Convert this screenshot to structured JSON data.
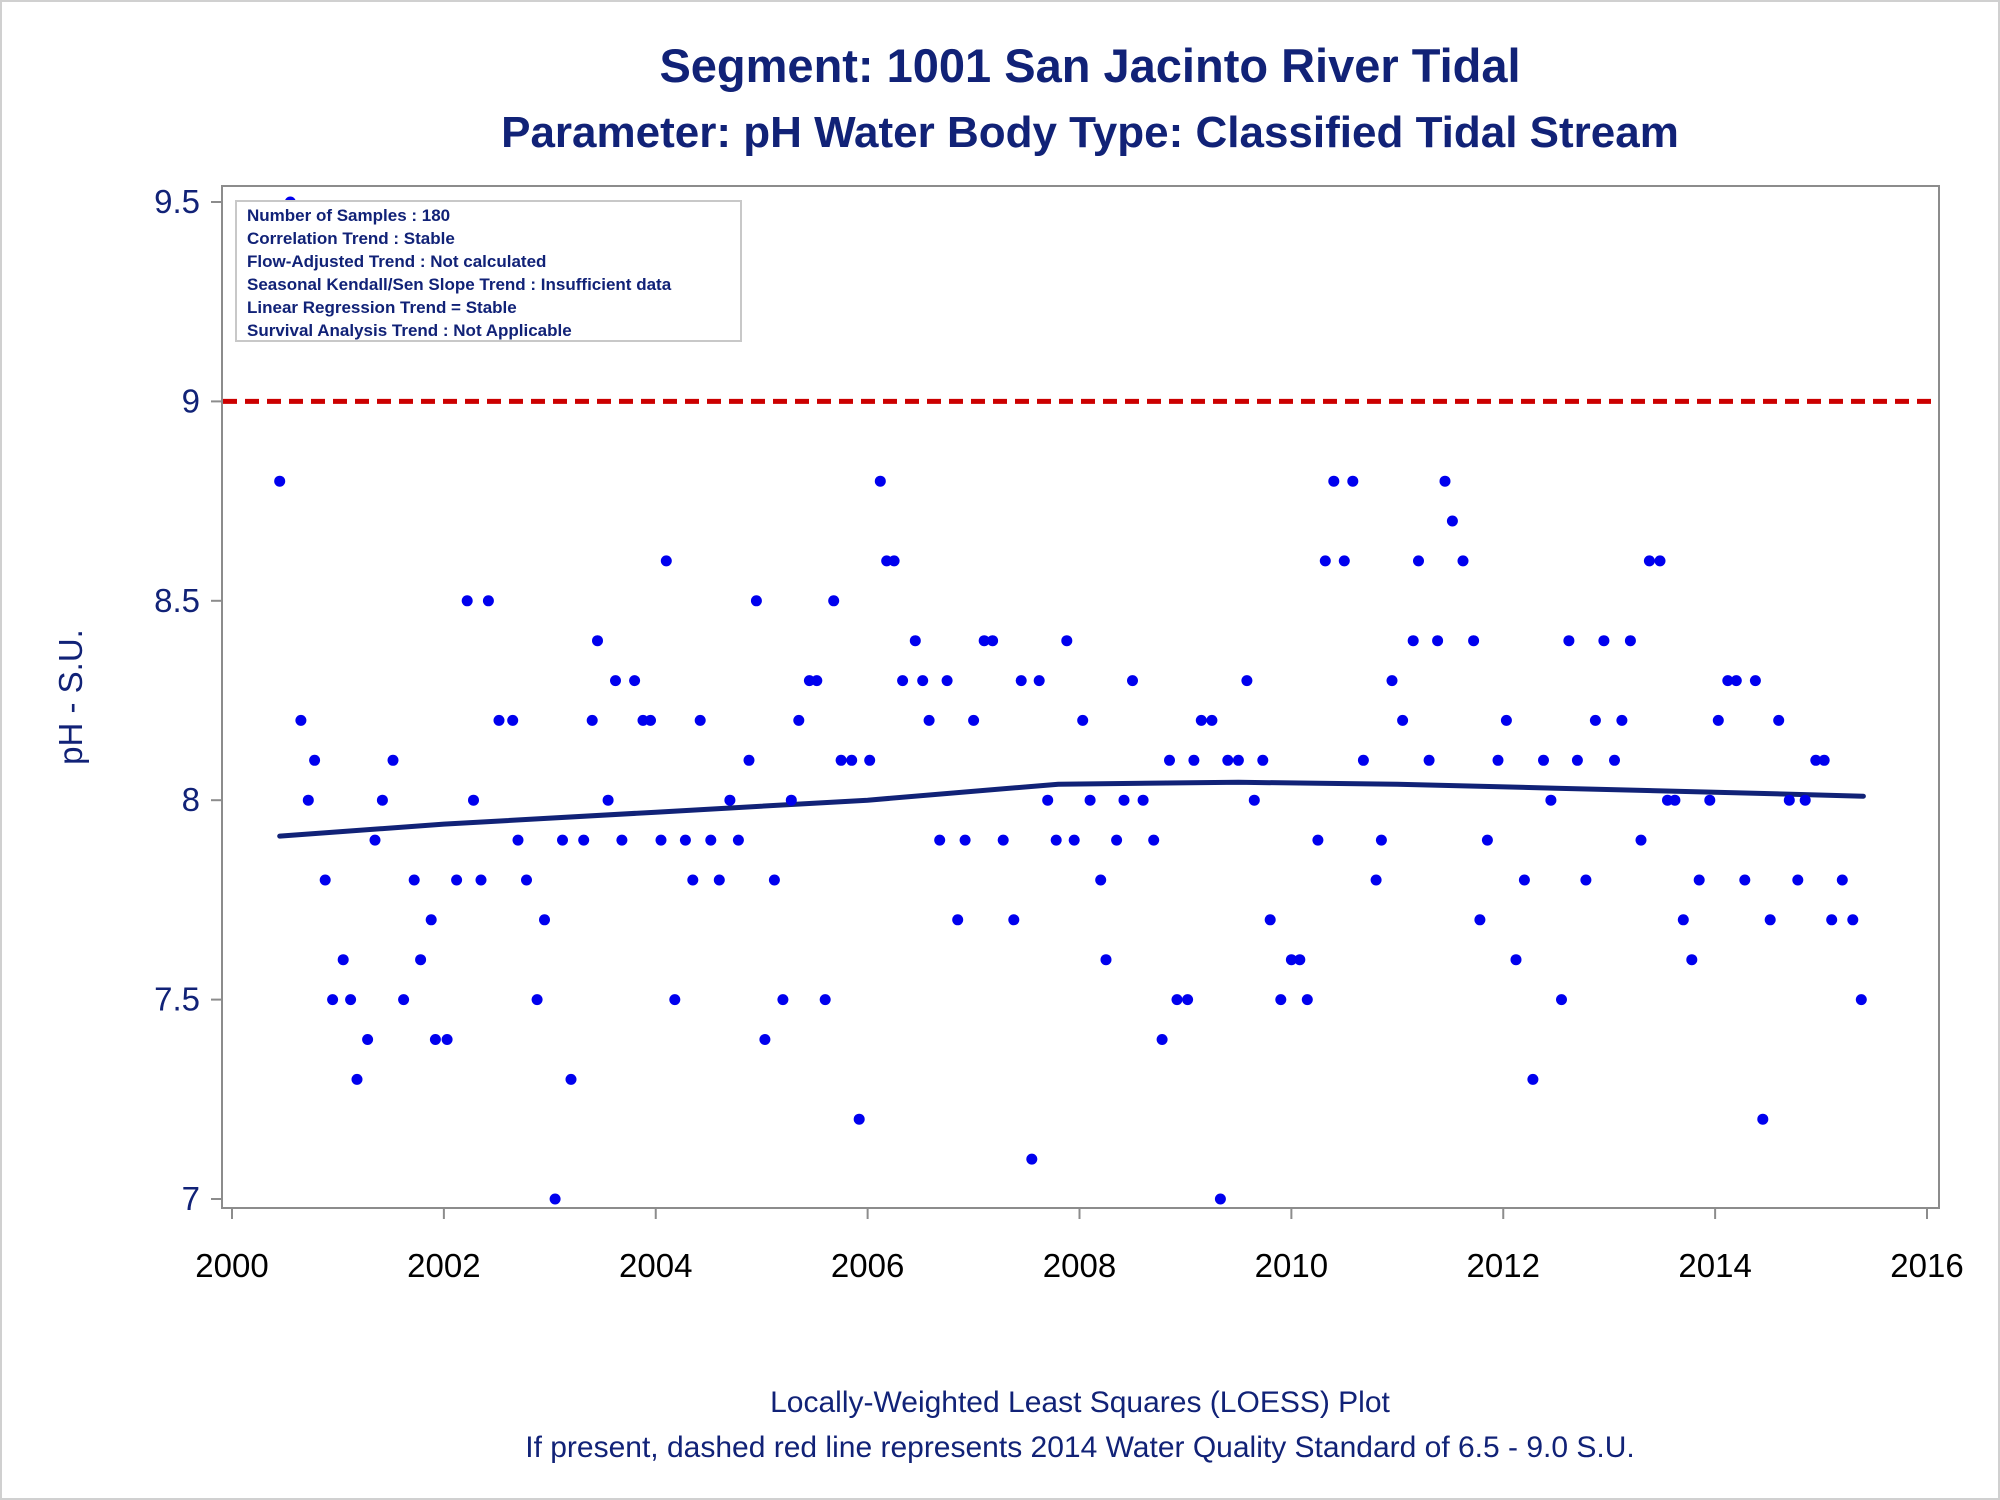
{
  "chart_data": {
    "type": "scatter",
    "title": "Segment: 1001  San Jacinto River Tidal",
    "subtitle": "Parameter: pH   Water Body Type: Classified Tidal Stream",
    "xlabel": "",
    "ylabel": "pH - S.U.",
    "xlim": [
      2000,
      2016
    ],
    "ylim": [
      7,
      9.5
    ],
    "xticks": [
      "2000",
      "2002",
      "2004",
      "2006",
      "2008",
      "2010",
      "2012",
      "2014",
      "2016"
    ],
    "yticks": [
      "7",
      "7.5",
      "8",
      "8.5",
      "9",
      "9.5"
    ],
    "grid": false,
    "legend": {
      "placement": "top-left",
      "lines": [
        "Number of Samples : 180",
        "Correlation Trend : Stable",
        "Flow-Adjusted Trend : Not calculated",
        "Seasonal Kendall/Sen Slope Trend : Insufficient data",
        "Linear Regression Trend = Stable",
        "Survival Analysis Trend : Not Applicable"
      ]
    },
    "reference_line": {
      "y": 9.0,
      "color": "#cc0000",
      "style": "dashed"
    },
    "loess": {
      "color": "#112277",
      "x": [
        2000.45,
        2002.0,
        2004.0,
        2006.0,
        2007.8,
        2009.5,
        2011.0,
        2012.5,
        2014.0,
        2015.4
      ],
      "y": [
        7.91,
        7.94,
        7.97,
        8.0,
        8.04,
        8.045,
        8.04,
        8.03,
        8.02,
        8.01
      ]
    },
    "series": [
      {
        "marker_color": "#0000ee",
        "points": [
          [
            2000.45,
            8.8
          ],
          [
            2000.55,
            9.5
          ],
          [
            2000.65,
            8.2
          ],
          [
            2000.72,
            8.0
          ],
          [
            2000.78,
            8.1
          ],
          [
            2000.88,
            7.8
          ],
          [
            2000.95,
            7.5
          ],
          [
            2001.05,
            7.6
          ],
          [
            2001.12,
            7.5
          ],
          [
            2001.18,
            7.3
          ],
          [
            2001.28,
            7.4
          ],
          [
            2001.35,
            7.9
          ],
          [
            2001.42,
            8.0
          ],
          [
            2001.52,
            8.1
          ],
          [
            2001.62,
            7.5
          ],
          [
            2001.72,
            7.8
          ],
          [
            2001.78,
            7.6
          ],
          [
            2001.88,
            7.7
          ],
          [
            2001.92,
            7.4
          ],
          [
            2002.03,
            7.4
          ],
          [
            2002.12,
            7.8
          ],
          [
            2002.22,
            8.5
          ],
          [
            2002.28,
            8.0
          ],
          [
            2002.35,
            7.8
          ],
          [
            2002.42,
            8.5
          ],
          [
            2002.52,
            8.2
          ],
          [
            2002.65,
            8.2
          ],
          [
            2002.7,
            7.9
          ],
          [
            2002.78,
            7.8
          ],
          [
            2002.88,
            7.5
          ],
          [
            2002.95,
            7.7
          ],
          [
            2003.05,
            7.0
          ],
          [
            2003.12,
            7.9
          ],
          [
            2003.2,
            7.3
          ],
          [
            2003.32,
            7.9
          ],
          [
            2003.4,
            8.2
          ],
          [
            2003.45,
            8.4
          ],
          [
            2003.55,
            8.0
          ],
          [
            2003.62,
            8.3
          ],
          [
            2003.68,
            7.9
          ],
          [
            2003.8,
            8.3
          ],
          [
            2003.88,
            8.2
          ],
          [
            2003.95,
            8.2
          ],
          [
            2004.05,
            7.9
          ],
          [
            2004.1,
            8.6
          ],
          [
            2004.18,
            7.5
          ],
          [
            2004.28,
            7.9
          ],
          [
            2004.35,
            7.8
          ],
          [
            2004.42,
            8.2
          ],
          [
            2004.52,
            7.9
          ],
          [
            2004.6,
            7.8
          ],
          [
            2004.7,
            8.0
          ],
          [
            2004.78,
            7.9
          ],
          [
            2004.88,
            8.1
          ],
          [
            2004.95,
            8.5
          ],
          [
            2005.03,
            7.4
          ],
          [
            2005.12,
            7.8
          ],
          [
            2005.2,
            7.5
          ],
          [
            2005.28,
            8.0
          ],
          [
            2005.35,
            8.2
          ],
          [
            2005.45,
            8.3
          ],
          [
            2005.52,
            8.3
          ],
          [
            2005.6,
            7.5
          ],
          [
            2005.68,
            8.5
          ],
          [
            2005.75,
            8.1
          ],
          [
            2005.85,
            8.1
          ],
          [
            2005.92,
            7.2
          ],
          [
            2006.02,
            8.1
          ],
          [
            2006.12,
            8.8
          ],
          [
            2006.18,
            8.6
          ],
          [
            2006.25,
            8.6
          ],
          [
            2006.33,
            8.3
          ],
          [
            2006.45,
            8.4
          ],
          [
            2006.52,
            8.3
          ],
          [
            2006.58,
            8.2
          ],
          [
            2006.68,
            7.9
          ],
          [
            2006.75,
            8.3
          ],
          [
            2006.85,
            7.7
          ],
          [
            2006.92,
            7.9
          ],
          [
            2007.0,
            8.2
          ],
          [
            2007.1,
            8.4
          ],
          [
            2007.18,
            8.4
          ],
          [
            2007.28,
            7.9
          ],
          [
            2007.38,
            7.7
          ],
          [
            2007.45,
            8.3
          ],
          [
            2007.55,
            7.1
          ],
          [
            2007.62,
            8.3
          ],
          [
            2007.7,
            8.0
          ],
          [
            2007.78,
            7.9
          ],
          [
            2007.88,
            8.4
          ],
          [
            2007.95,
            7.9
          ],
          [
            2008.03,
            8.2
          ],
          [
            2008.1,
            8.0
          ],
          [
            2008.2,
            7.8
          ],
          [
            2008.25,
            7.6
          ],
          [
            2008.35,
            7.9
          ],
          [
            2008.42,
            8.0
          ],
          [
            2008.5,
            8.3
          ],
          [
            2008.6,
            8.0
          ],
          [
            2008.7,
            7.9
          ],
          [
            2008.78,
            7.4
          ],
          [
            2008.85,
            8.1
          ],
          [
            2008.92,
            7.5
          ],
          [
            2009.02,
            7.5
          ],
          [
            2009.08,
            8.1
          ],
          [
            2009.15,
            8.2
          ],
          [
            2009.25,
            8.2
          ],
          [
            2009.33,
            7.0
          ],
          [
            2009.4,
            8.1
          ],
          [
            2009.5,
            8.1
          ],
          [
            2009.58,
            8.3
          ],
          [
            2009.65,
            8.0
          ],
          [
            2009.73,
            8.1
          ],
          [
            2009.8,
            7.7
          ],
          [
            2009.9,
            7.5
          ],
          [
            2010.0,
            7.6
          ],
          [
            2010.08,
            7.6
          ],
          [
            2010.15,
            7.5
          ],
          [
            2010.25,
            7.9
          ],
          [
            2010.32,
            8.6
          ],
          [
            2010.4,
            8.8
          ],
          [
            2010.5,
            8.6
          ],
          [
            2010.58,
            8.8
          ],
          [
            2010.68,
            8.1
          ],
          [
            2010.8,
            7.8
          ],
          [
            2010.85,
            7.9
          ],
          [
            2010.95,
            8.3
          ],
          [
            2011.05,
            8.2
          ],
          [
            2011.15,
            8.4
          ],
          [
            2011.2,
            8.6
          ],
          [
            2011.3,
            8.1
          ],
          [
            2011.38,
            8.4
          ],
          [
            2011.45,
            8.8
          ],
          [
            2011.52,
            8.7
          ],
          [
            2011.62,
            8.6
          ],
          [
            2011.72,
            8.4
          ],
          [
            2011.78,
            7.7
          ],
          [
            2011.85,
            7.9
          ],
          [
            2011.95,
            8.1
          ],
          [
            2012.03,
            8.2
          ],
          [
            2012.12,
            7.6
          ],
          [
            2012.2,
            7.8
          ],
          [
            2012.28,
            7.3
          ],
          [
            2012.38,
            8.1
          ],
          [
            2012.45,
            8.0
          ],
          [
            2012.55,
            7.5
          ],
          [
            2012.62,
            8.4
          ],
          [
            2012.7,
            8.1
          ],
          [
            2012.78,
            7.8
          ],
          [
            2012.87,
            8.2
          ],
          [
            2012.95,
            8.4
          ],
          [
            2013.05,
            8.1
          ],
          [
            2013.12,
            8.2
          ],
          [
            2013.2,
            8.4
          ],
          [
            2013.3,
            7.9
          ],
          [
            2013.38,
            8.6
          ],
          [
            2013.48,
            8.6
          ],
          [
            2013.55,
            8.0
          ],
          [
            2013.62,
            8.0
          ],
          [
            2013.7,
            7.7
          ],
          [
            2013.78,
            7.6
          ],
          [
            2013.85,
            7.8
          ],
          [
            2013.95,
            8.0
          ],
          [
            2014.03,
            8.2
          ],
          [
            2014.12,
            8.3
          ],
          [
            2014.2,
            8.3
          ],
          [
            2014.28,
            7.8
          ],
          [
            2014.38,
            8.3
          ],
          [
            2014.45,
            7.2
          ],
          [
            2014.52,
            7.7
          ],
          [
            2014.6,
            8.2
          ],
          [
            2014.7,
            8.0
          ],
          [
            2014.78,
            7.8
          ],
          [
            2014.85,
            8.0
          ],
          [
            2014.95,
            8.1
          ],
          [
            2015.03,
            8.1
          ],
          [
            2015.1,
            7.7
          ],
          [
            2015.2,
            7.8
          ],
          [
            2015.3,
            7.7
          ],
          [
            2015.38,
            7.5
          ]
        ]
      }
    ]
  },
  "footer": {
    "line1": "Locally-Weighted Least Squares (LOESS) Plot",
    "line2": "If present, dashed red line represents 2014 Water Quality Standard of 6.5 - 9.0 S.U."
  }
}
